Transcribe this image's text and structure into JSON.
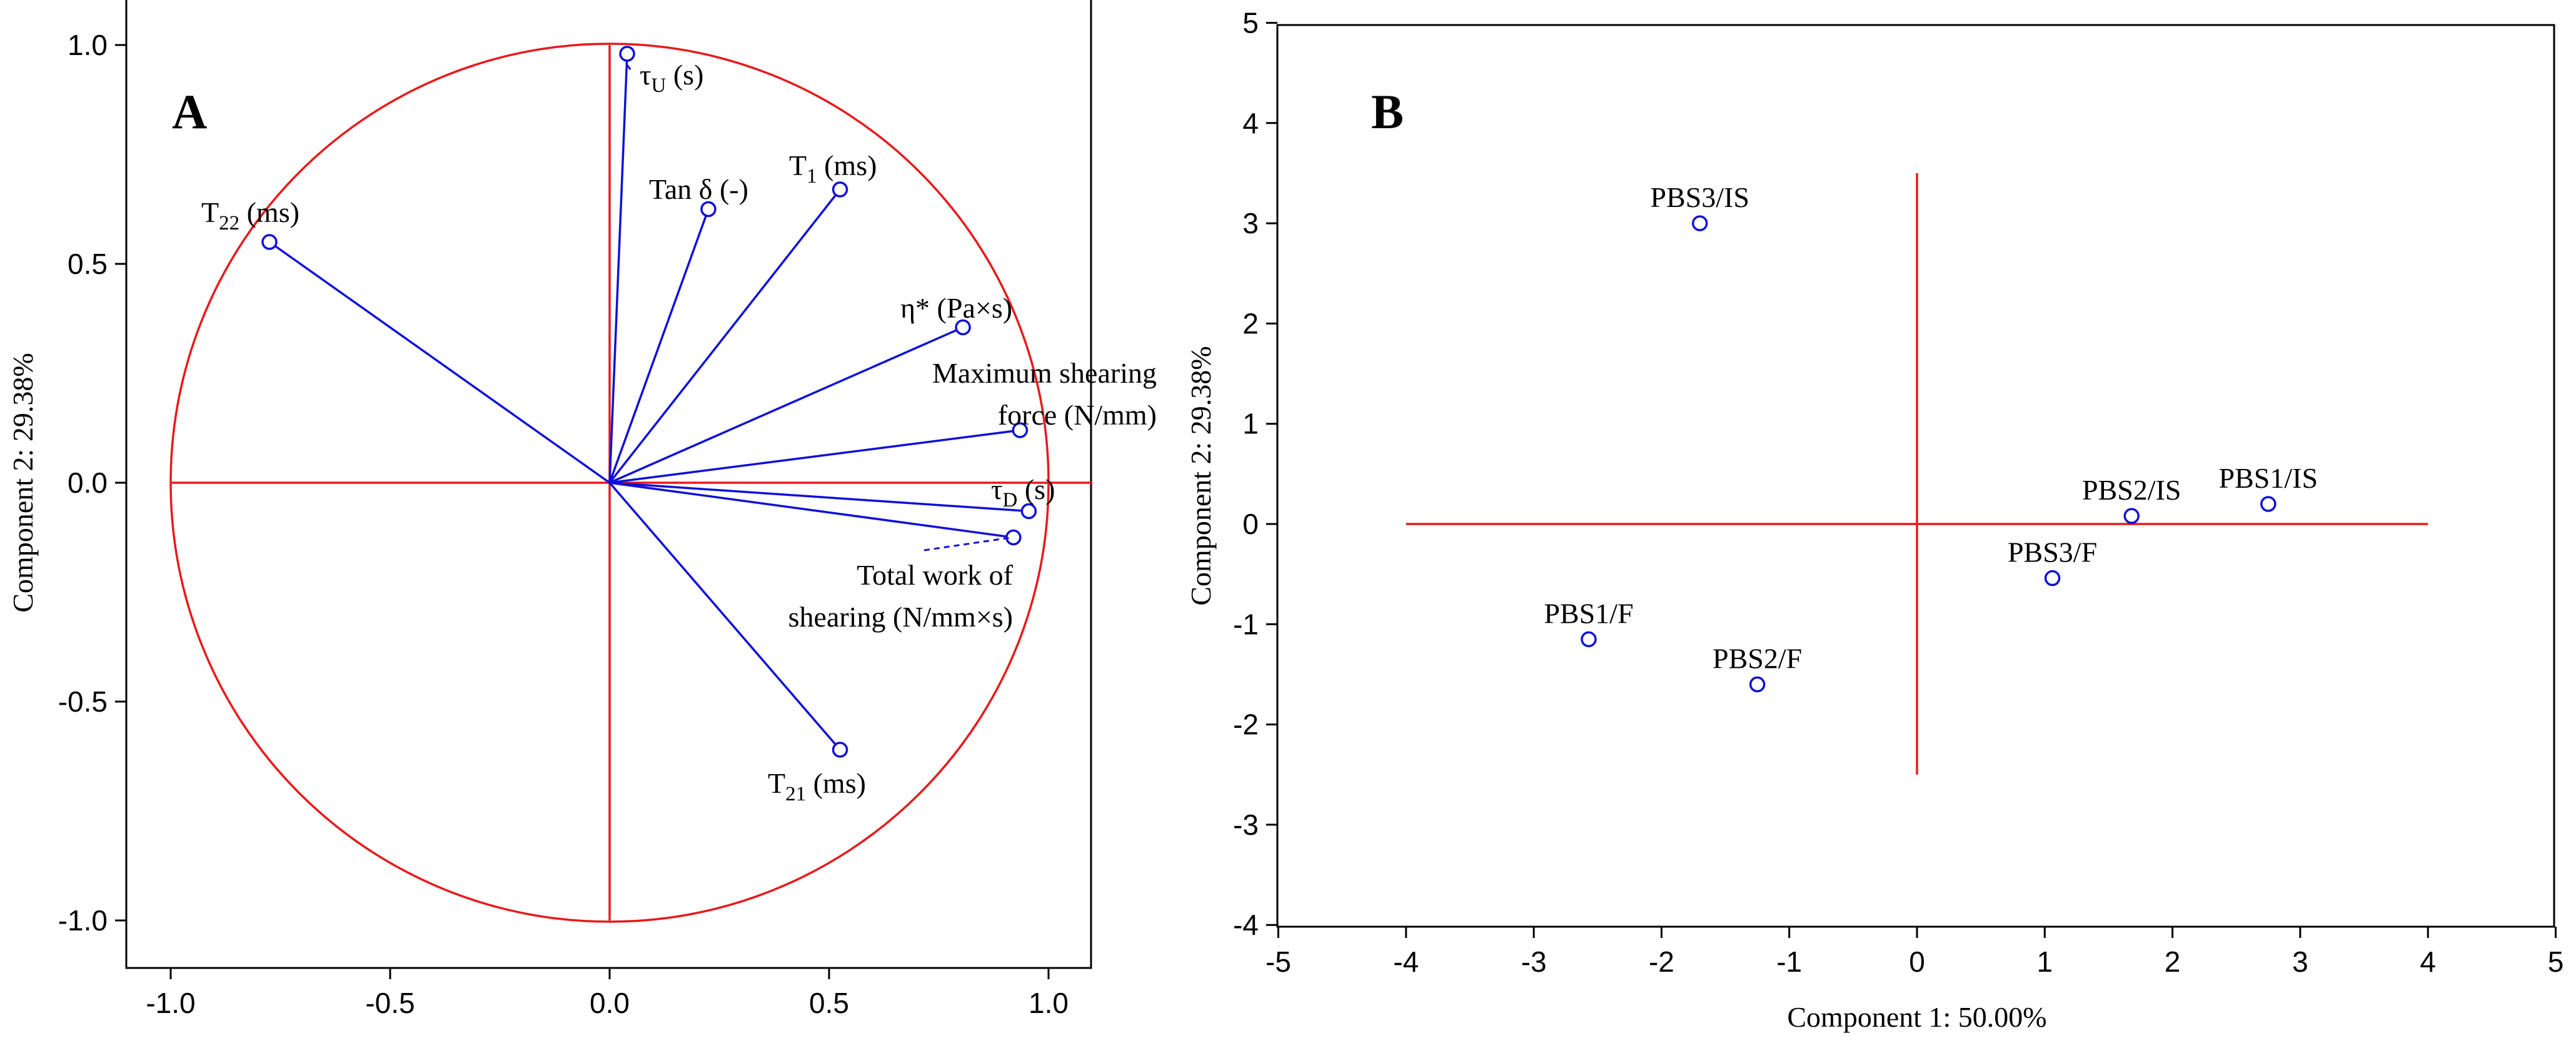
{
  "chart_data": [
    {
      "type": "scatter",
      "panel": "A",
      "subtype": "pca-loadings-correlation-circle",
      "xlabel": "",
      "ylabel": "Component 2: 29.38%",
      "xlim": [
        -1.1,
        1.1
      ],
      "ylim": [
        -1.1,
        1.1
      ],
      "xticks": [
        "-1.0",
        "-0.5",
        "0.0",
        "0.5",
        "1.0"
      ],
      "yticks": [
        "1.0",
        "0.5",
        "0.0",
        "-0.5",
        "-1.0"
      ],
      "circle_radius": 1.0,
      "points": [
        {
          "name": "tau_U",
          "label": "τ",
          "sub": "U",
          "suffix": " (s)",
          "x": 0.04,
          "y": 0.98
        },
        {
          "name": "tan_delta",
          "label": "Tan δ (-)",
          "sub": "",
          "suffix": "",
          "x": 0.225,
          "y": 0.625
        },
        {
          "name": "T1",
          "label": "T",
          "sub": "1",
          "suffix": " (ms)",
          "x": 0.525,
          "y": 0.67
        },
        {
          "name": "T22",
          "label": "T",
          "sub": "22",
          "suffix": " (ms)",
          "x": -0.775,
          "y": 0.55
        },
        {
          "name": "eta",
          "label": "η* (Pa×s)",
          "sub": "",
          "suffix": "",
          "x": 0.805,
          "y": 0.355
        },
        {
          "name": "max_shear",
          "label": "Maximum shearing",
          "label2": "force (N/mm)",
          "sub": "",
          "suffix": "",
          "x": 0.935,
          "y": 0.12
        },
        {
          "name": "tau_D",
          "label": "τ",
          "sub": "D",
          "suffix": " (s)",
          "x": 0.955,
          "y": -0.065
        },
        {
          "name": "total_work",
          "label": "Total work of",
          "label2": "shearing (N/mm×s)",
          "sub": "",
          "suffix": "",
          "x": 0.92,
          "y": -0.125
        },
        {
          "name": "T21",
          "label": "T",
          "sub": "21",
          "suffix": " (ms)",
          "x": 0.525,
          "y": -0.61
        }
      ]
    },
    {
      "type": "scatter",
      "panel": "B",
      "xlabel": "Component 1: 50.00%",
      "ylabel": "Component 2: 29.38%",
      "xlim": [
        -5,
        5
      ],
      "ylim": [
        -4,
        5
      ],
      "xticks": [
        "-5",
        "-4",
        "-3",
        "-2",
        "-1",
        "0",
        "1",
        "2",
        "3",
        "4",
        "5"
      ],
      "yticks": [
        "5",
        "4",
        "3",
        "2",
        "1",
        "0",
        "-1",
        "-2",
        "-3",
        "-4"
      ],
      "reference_lines": {
        "horizontal_x_range": [
          -4,
          4
        ],
        "vertical_y_range": [
          -2.5,
          3.5
        ]
      },
      "points": [
        {
          "label": "PBS3/IS",
          "x": -1.7,
          "y": 3.0
        },
        {
          "label": "PBS2/IS",
          "x": 1.68,
          "y": 0.08
        },
        {
          "label": "PBS1/IS",
          "x": 2.75,
          "y": 0.2
        },
        {
          "label": "PBS3/F",
          "x": 1.06,
          "y": -0.54
        },
        {
          "label": "PBS1/F",
          "x": -2.57,
          "y": -1.15
        },
        {
          "label": "PBS2/F",
          "x": -1.25,
          "y": -1.6
        }
      ]
    }
  ],
  "colors": {
    "reference": "#e8191b",
    "vectors": "#1010d8",
    "axis": "#000000"
  }
}
